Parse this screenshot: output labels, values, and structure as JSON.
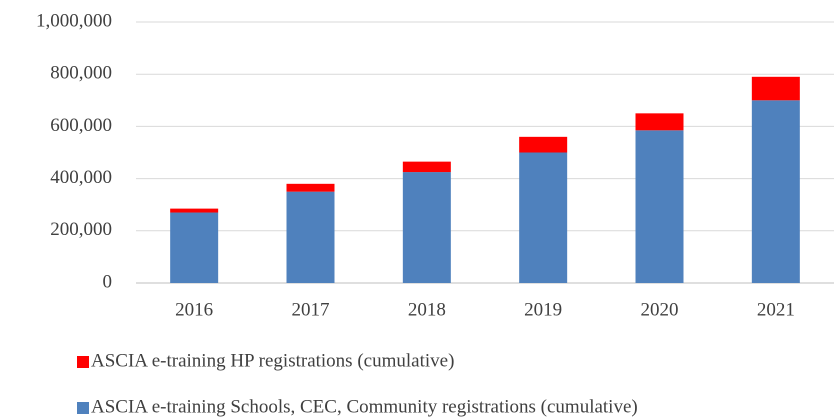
{
  "chart_data": {
    "type": "stacked_bar",
    "categories": [
      "2016",
      "2017",
      "2018",
      "2019",
      "2020",
      "2021"
    ],
    "series": [
      {
        "name": "ASCIA e-training Schools, CEC, Community registrations (cumulative)",
        "color": "#4f81bd",
        "values": [
          270000,
          350000,
          425000,
          500000,
          585000,
          700000
        ]
      },
      {
        "name": "ASCIA e-training HP registrations (cumulative)",
        "color": "#ff0000",
        "values": [
          15000,
          30000,
          40000,
          60000,
          65000,
          90000
        ]
      }
    ],
    "ylim": [
      0,
      1000000
    ],
    "yticks": [
      0,
      {
        "value": 200000,
        "label": "200,000"
      },
      {
        "value": 400000,
        "label": "400,000"
      },
      {
        "value": 600000,
        "label": "600,000"
      },
      {
        "value": 800000,
        "label": "800,000"
      },
      {
        "value": 1000000,
        "label": "1,000,000"
      }
    ],
    "grid": true
  }
}
